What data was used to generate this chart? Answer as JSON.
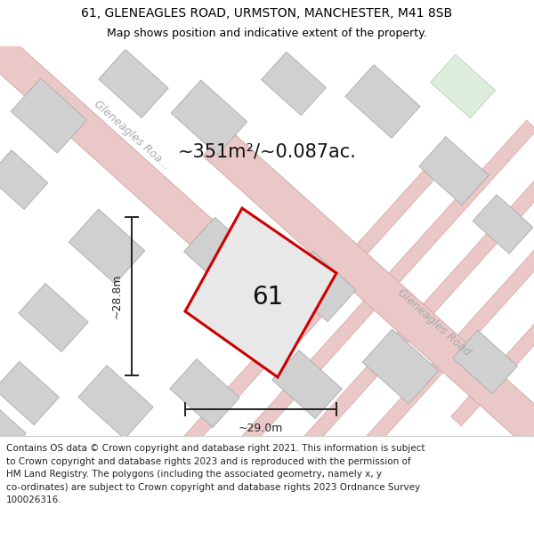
{
  "title_line1": "61, GLENEAGLES ROAD, URMSTON, MANCHESTER, M41 8SB",
  "title_line2": "Map shows position and indicative extent of the property.",
  "area_text": "~351m²/~0.087ac.",
  "number_label": "61",
  "width_label": "~29.0m",
  "height_label": "~28.8m",
  "map_bg": "#f0f0f0",
  "road_fill": "#eac8c8",
  "road_edge": "#cc9999",
  "block_fill": "#d0d0d0",
  "block_edge": "#aaaaaa",
  "green_fill": "#ddeedd",
  "green_edge": "#bbccbb",
  "plot_fill": "#e8e8e8",
  "plot_edge": "#cc0000",
  "title_bg": "#ffffff",
  "footer_bg": "#ffffff",
  "dim_color": "#222222",
  "road_label_color": "#aaaaaa",
  "footer_lines": [
    "Contains OS data © Crown copyright and database right 2021. This information is subject",
    "to Crown copyright and database rights 2023 and is reproduced with the permission of",
    "HM Land Registry. The polygons (including the associated geometry, namely x, y",
    "co-ordinates) are subject to Crown copyright and database rights 2023 Ordnance Survey",
    "100026316."
  ],
  "title_fontsize": 10,
  "subtitle_fontsize": 9,
  "area_fontsize": 15,
  "number_fontsize": 20,
  "dim_fontsize": 9,
  "road_label_fontsize": 9,
  "footer_fontsize": 7.5
}
